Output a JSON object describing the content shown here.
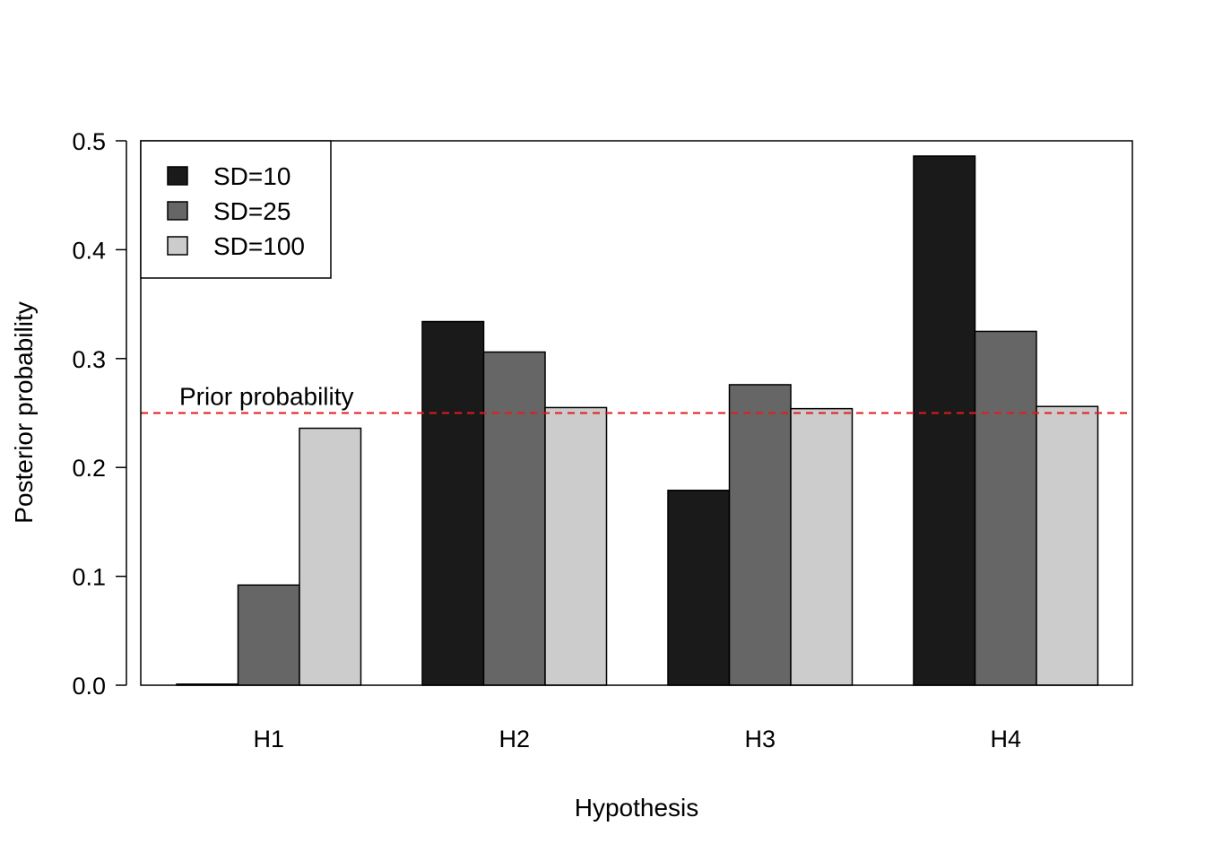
{
  "chart_data": {
    "type": "bar",
    "xlabel": "Hypothesis",
    "ylabel": "Posterior probability",
    "categories": [
      "H1",
      "H2",
      "H3",
      "H4"
    ],
    "series": [
      {
        "name": "SD=10",
        "color": "#1a1a1a",
        "values": [
          0.001,
          0.334,
          0.179,
          0.486
        ]
      },
      {
        "name": "SD=25",
        "color": "#666666",
        "values": [
          0.092,
          0.306,
          0.276,
          0.325
        ]
      },
      {
        "name": "SD=100",
        "color": "#cccccc",
        "values": [
          0.236,
          0.255,
          0.254,
          0.256
        ]
      }
    ],
    "ylim": [
      0,
      0.5
    ],
    "yticks": [
      "0.0",
      "0.1",
      "0.2",
      "0.3",
      "0.4",
      "0.5"
    ],
    "reference_line": {
      "y": 0.25,
      "label": "Prior probability",
      "color": "#e31a1c",
      "style": "dashed"
    },
    "legend": {
      "position": "top-left"
    },
    "grid": false
  }
}
